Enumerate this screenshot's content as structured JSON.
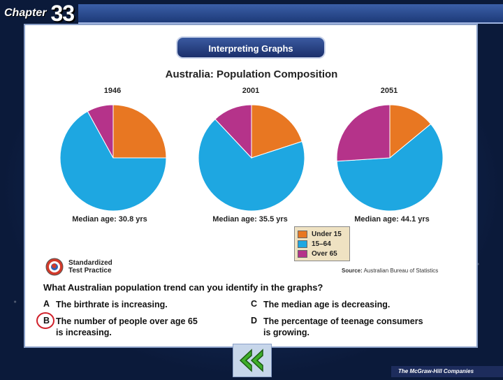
{
  "header": {
    "chapter_word": "Chapter",
    "chapter_number": "33"
  },
  "banner": {
    "label": "Interpreting Graphs"
  },
  "chart_data": {
    "type": "pie",
    "title": "Australia: Population Composition",
    "categories": [
      "Under 15",
      "15–64",
      "Over 65"
    ],
    "colors": [
      "#e87722",
      "#1ea7e1",
      "#b5338a"
    ],
    "charts": [
      {
        "year": "1946",
        "values": [
          25,
          67,
          8
        ],
        "median": "Median age: 30.8 yrs"
      },
      {
        "year": "2001",
        "values": [
          20,
          68,
          12
        ],
        "median": "Median age: 35.5 yrs"
      },
      {
        "year": "2051",
        "values": [
          14,
          60,
          26
        ],
        "median": "Median age: 44.1 yrs"
      }
    ],
    "legend_position": "bottom-right",
    "source_label": "Source:",
    "source_text": "Australian Bureau of Statistics"
  },
  "stp": {
    "line1": "Standardized",
    "line2": "Test Practice"
  },
  "question": {
    "text": "What Australian population trend can you identify in the graphs?",
    "options": [
      {
        "letter": "A",
        "text": "The birthrate is increasing."
      },
      {
        "letter": "B",
        "text": "The number of people over age 65",
        "text2": "is increasing."
      },
      {
        "letter": "C",
        "text": "The median age is decreasing."
      },
      {
        "letter": "D",
        "text": "The percentage of teenage consumers",
        "text2": "is growing."
      }
    ],
    "selected": "B"
  },
  "footer": {
    "publisher": "The McGraw-Hill Companies"
  }
}
